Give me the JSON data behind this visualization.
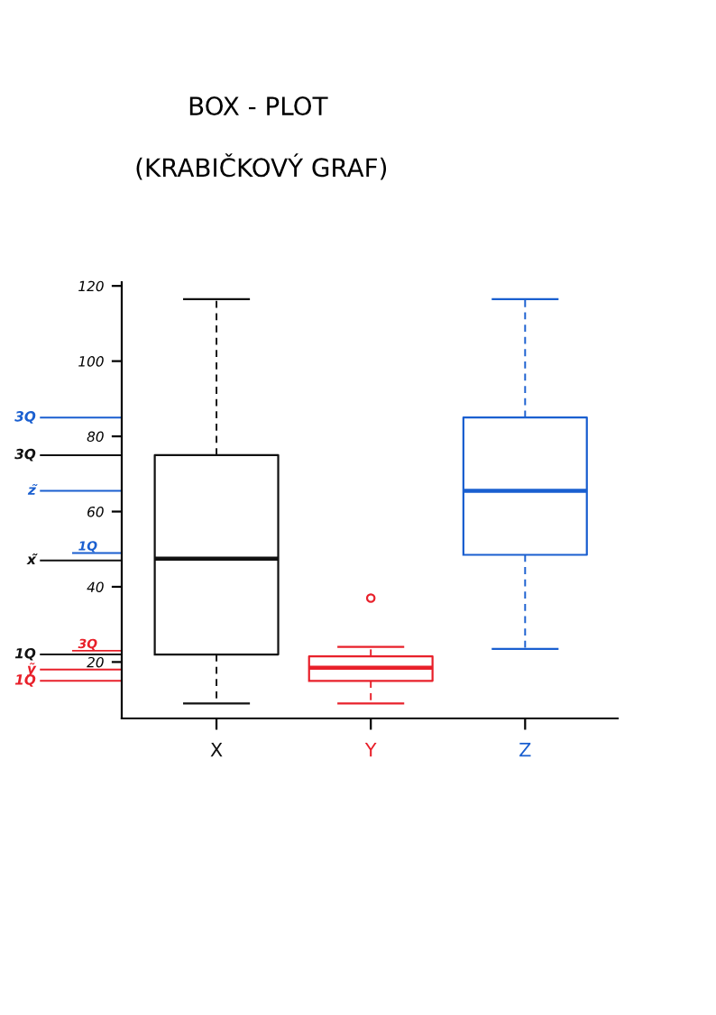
{
  "chart_data": {
    "type": "box",
    "title": "BOX - PLOT",
    "subtitle": "(KRABIČKOVÝ GRAF)",
    "categories": [
      "X",
      "Y",
      "Z"
    ],
    "colors": [
      "#111111",
      "#e8202a",
      "#1a5fd0"
    ],
    "boxes": [
      {
        "low": 9,
        "q1": 22,
        "median": 47.5,
        "q3": 75,
        "high": 116.5
      },
      {
        "low": 9,
        "q1": 15,
        "median": 18.5,
        "q3": 21.5,
        "high": 24,
        "outliers": [
          37
        ]
      },
      {
        "low": 23.5,
        "q1": 48.5,
        "median": 65.5,
        "q3": 85,
        "high": 116.5
      }
    ],
    "ylim": [
      5,
      121
    ],
    "yticks": [
      20,
      40,
      60,
      80,
      100,
      120
    ],
    "line_style": "dashed",
    "marker": "circle",
    "ref_lines": [
      {
        "axis": "y",
        "value": 85,
        "label": "3Q",
        "color": "#1a5fd0"
      },
      {
        "axis": "y",
        "value": 75,
        "label": "3Q",
        "color": "#111111"
      },
      {
        "axis": "y",
        "value": 65.5,
        "label": "z̃",
        "color": "#1a5fd0"
      },
      {
        "axis": "y",
        "value": 49,
        "label": "1Q",
        "color": "#1a5fd0"
      },
      {
        "axis": "y",
        "value": 47,
        "label": "x̃",
        "color": "#111111"
      },
      {
        "axis": "y",
        "value": 23,
        "label": "3Q",
        "color": "#e8202a"
      },
      {
        "axis": "y",
        "value": 22,
        "label": "1Q",
        "color": "#111111"
      },
      {
        "axis": "y",
        "value": 18,
        "label": "ỹ",
        "color": "#e8202a"
      },
      {
        "axis": "y",
        "value": 15,
        "label": "1Q",
        "color": "#e8202a"
      }
    ]
  }
}
